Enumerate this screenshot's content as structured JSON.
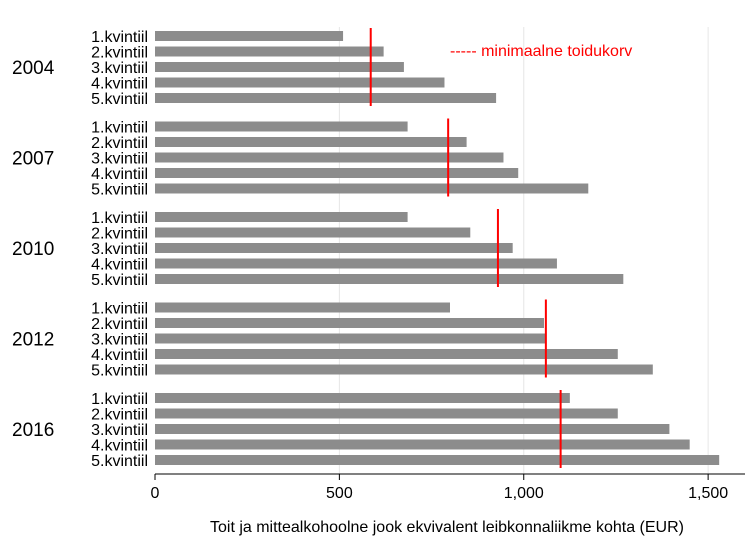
{
  "chart_data": {
    "type": "bar",
    "orientation": "horizontal",
    "xlabel": "Toit ja mittealkohoolne jook ekvivalent leibkonnaliikme kohta (EUR)",
    "xlim": [
      0,
      1600
    ],
    "xticks": [
      0,
      500,
      1000,
      1500
    ],
    "xtick_labels": [
      "0",
      "500",
      "1,000",
      "1,500"
    ],
    "grid": "vertical",
    "categories": [
      "1.kvintiil",
      "2.kvintiil",
      "3.kvintiil",
      "4.kvintiil",
      "5.kvintiil"
    ],
    "groups": [
      {
        "year": "2004",
        "values": [
          510,
          620,
          675,
          785,
          925
        ],
        "reference": 585
      },
      {
        "year": "2007",
        "values": [
          685,
          845,
          945,
          985,
          1175
        ],
        "reference": 795
      },
      {
        "year": "2010",
        "values": [
          685,
          855,
          970,
          1090,
          1270
        ],
        "reference": 930
      },
      {
        "year": "2012",
        "values": [
          800,
          1055,
          1060,
          1255,
          1350
        ],
        "reference": 1060
      },
      {
        "year": "2016",
        "values": [
          1125,
          1255,
          1395,
          1450,
          1530
        ],
        "reference": 1100
      }
    ],
    "legend": {
      "symbol": "-----",
      "label": "minimaalne toidukorv",
      "position": "top-right"
    },
    "colors": {
      "bar": "#8c8c8c",
      "reference": "#ff0000"
    }
  }
}
